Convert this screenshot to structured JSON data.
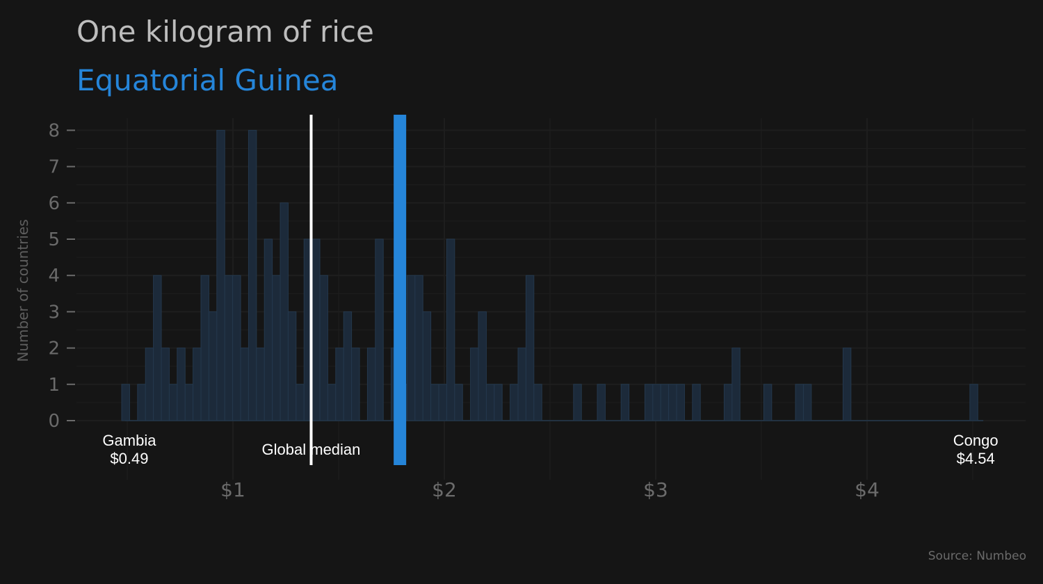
{
  "chart_data": {
    "type": "bar",
    "title": "One kilogram of rice",
    "subtitle": "Equatorial Guinea",
    "ylabel": "Number of countries",
    "xlabel": "",
    "x_ticks": [
      {
        "value": 1,
        "label": "$1"
      },
      {
        "value": 2,
        "label": "$2"
      },
      {
        "value": 3,
        "label": "$3"
      },
      {
        "value": 4,
        "label": "$4"
      }
    ],
    "y_ticks": [
      0,
      1,
      2,
      3,
      4,
      5,
      6,
      7,
      8
    ],
    "xlim": [
      0.25,
      4.7
    ],
    "ylim": [
      0,
      8.4
    ],
    "bin_width": 0.0375,
    "bins": [
      {
        "x": 0.4925,
        "count": 1
      },
      {
        "x": 0.5675,
        "count": 1
      },
      {
        "x": 0.605,
        "count": 2
      },
      {
        "x": 0.6425,
        "count": 4
      },
      {
        "x": 0.68,
        "count": 2
      },
      {
        "x": 0.7175,
        "count": 1
      },
      {
        "x": 0.755,
        "count": 2
      },
      {
        "x": 0.7925,
        "count": 1
      },
      {
        "x": 0.83,
        "count": 2
      },
      {
        "x": 0.8675,
        "count": 4
      },
      {
        "x": 0.905,
        "count": 3
      },
      {
        "x": 0.9425,
        "count": 8
      },
      {
        "x": 0.98,
        "count": 4
      },
      {
        "x": 1.0175,
        "count": 4
      },
      {
        "x": 1.055,
        "count": 2
      },
      {
        "x": 1.0925,
        "count": 8
      },
      {
        "x": 1.13,
        "count": 2
      },
      {
        "x": 1.1675,
        "count": 5
      },
      {
        "x": 1.205,
        "count": 4
      },
      {
        "x": 1.2425,
        "count": 6
      },
      {
        "x": 1.28,
        "count": 3
      },
      {
        "x": 1.3175,
        "count": 1
      },
      {
        "x": 1.355,
        "count": 5
      },
      {
        "x": 1.3925,
        "count": 5
      },
      {
        "x": 1.43,
        "count": 4
      },
      {
        "x": 1.4675,
        "count": 1
      },
      {
        "x": 1.505,
        "count": 2
      },
      {
        "x": 1.5425,
        "count": 3
      },
      {
        "x": 1.58,
        "count": 2
      },
      {
        "x": 1.655,
        "count": 2
      },
      {
        "x": 1.6925,
        "count": 5
      },
      {
        "x": 1.7675,
        "count": 2
      },
      {
        "x": 1.805,
        "count": 1
      },
      {
        "x": 1.8425,
        "count": 4
      },
      {
        "x": 1.88,
        "count": 4
      },
      {
        "x": 1.9175,
        "count": 3
      },
      {
        "x": 1.955,
        "count": 1
      },
      {
        "x": 1.9925,
        "count": 1
      },
      {
        "x": 2.03,
        "count": 5
      },
      {
        "x": 2.0675,
        "count": 1
      },
      {
        "x": 2.1425,
        "count": 2
      },
      {
        "x": 2.18,
        "count": 3
      },
      {
        "x": 2.2175,
        "count": 1
      },
      {
        "x": 2.255,
        "count": 1
      },
      {
        "x": 2.33,
        "count": 1
      },
      {
        "x": 2.3675,
        "count": 2
      },
      {
        "x": 2.405,
        "count": 4
      },
      {
        "x": 2.4425,
        "count": 1
      },
      {
        "x": 2.63,
        "count": 1
      },
      {
        "x": 2.7425,
        "count": 1
      },
      {
        "x": 2.855,
        "count": 1
      },
      {
        "x": 2.9675,
        "count": 1
      },
      {
        "x": 3.005,
        "count": 1
      },
      {
        "x": 3.0425,
        "count": 1
      },
      {
        "x": 3.08,
        "count": 1
      },
      {
        "x": 3.1175,
        "count": 1
      },
      {
        "x": 3.1925,
        "count": 1
      },
      {
        "x": 3.3425,
        "count": 1
      },
      {
        "x": 3.38,
        "count": 2
      },
      {
        "x": 3.53,
        "count": 1
      },
      {
        "x": 3.68,
        "count": 1
      },
      {
        "x": 3.7175,
        "count": 1
      },
      {
        "x": 3.905,
        "count": 2
      },
      {
        "x": 4.505,
        "count": 1
      }
    ],
    "median": {
      "value": 1.37,
      "label": "Global median"
    },
    "highlight": {
      "value": 1.79,
      "label": "Equatorial Guinea"
    },
    "min_annotation": {
      "name": "Gambia",
      "value": 0.49,
      "price": "$0.49"
    },
    "max_annotation": {
      "name": "Congo",
      "value": 4.54,
      "price": "$4.54"
    },
    "grid": true,
    "colors": {
      "background": "#151515",
      "bar_fill": "#1c2a3a",
      "bar_stroke": "#24384d",
      "highlight": "#2585d9",
      "median": "#ffffff",
      "grid": "#1e1e1e"
    }
  },
  "source": "Source: Numbeo"
}
